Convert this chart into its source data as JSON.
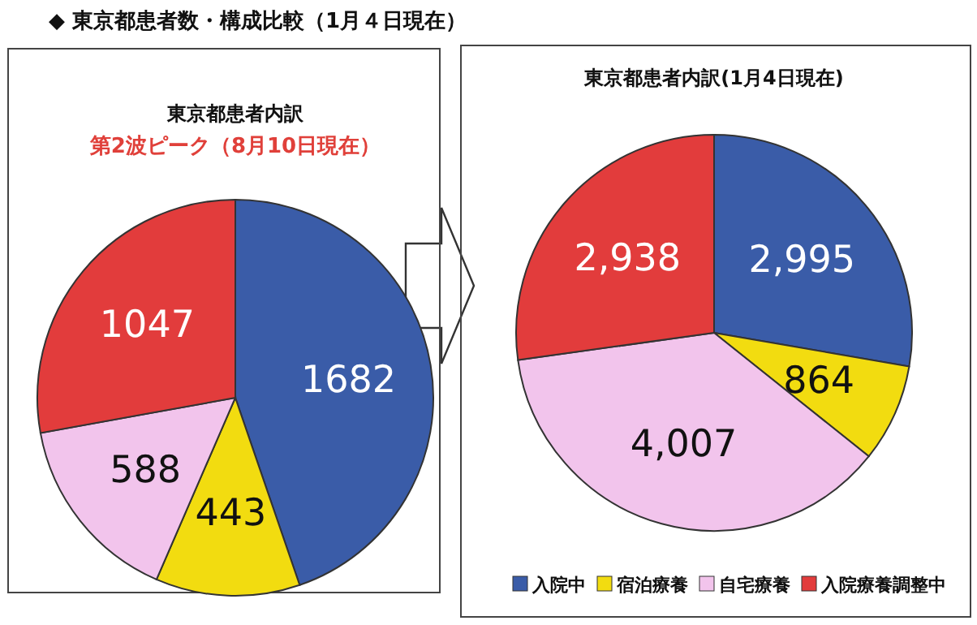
{
  "chart_data": [
    {
      "type": "pie",
      "title": "東京都患者内訳",
      "subtitle": "第2波ピーク（8月10日現在）",
      "annotations": [
        "◆ 東京都患者数・構成比較（1月４日現在）"
      ],
      "categories": [
        null,
        null,
        null,
        null
      ],
      "values": [
        1682,
        443,
        588,
        1047
      ],
      "value_labels": [
        "1682",
        "443",
        "588",
        "1047"
      ],
      "colors": [
        "#3a5ca8",
        "#f2dc10",
        "#f2c4ec",
        "#e23c3c"
      ]
    },
    {
      "type": "pie",
      "title": "東京都患者内訳(1月4日現在)",
      "legend": "bottom right",
      "categories": [
        "入院中",
        "宿泊療養",
        "自宅療養",
        "入院療養調整中"
      ],
      "values": [
        2995,
        864,
        4007,
        2938
      ],
      "value_labels": [
        "2,995",
        "864",
        "4,007",
        "2,938"
      ],
      "colors": [
        "#3a5ca8",
        "#f2dc10",
        "#f2c4ec",
        "#e23c3c"
      ]
    }
  ]
}
